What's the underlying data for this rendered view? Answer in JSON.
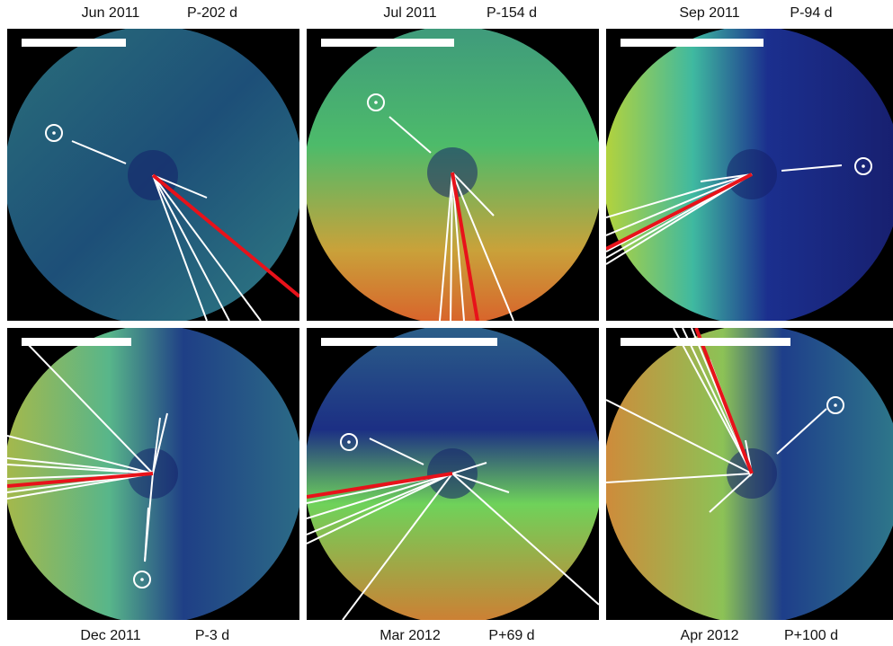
{
  "panels": [
    {
      "date": "Jun 2011",
      "phase": "P-202 d"
    },
    {
      "date": "Jul 2011",
      "phase": "P-154 d"
    },
    {
      "date": "Sep 2011",
      "phase": "P-94 d"
    },
    {
      "date": "Dec 2011",
      "phase": "P-3 d"
    },
    {
      "date": "Mar 2012",
      "phase": "P+69 d"
    },
    {
      "date": "Apr 2012",
      "phase": "P+100 d"
    }
  ]
}
